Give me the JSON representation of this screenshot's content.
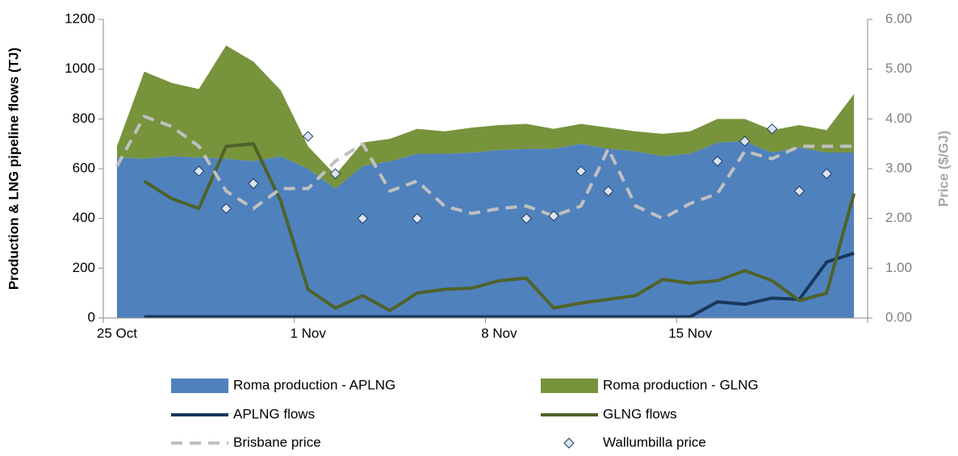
{
  "chart_data": {
    "type": "combo",
    "y_label": "Production & LNG pipeline flows (TJ)",
    "y2_label": "Price ($/GJ)",
    "categories": [
      "25 Oct",
      null,
      null,
      null,
      null,
      null,
      null,
      "1 Nov",
      null,
      null,
      null,
      null,
      null,
      null,
      "8 Nov",
      null,
      null,
      null,
      null,
      null,
      null,
      "15 Nov",
      null,
      null,
      null,
      null,
      null,
      null
    ],
    "ylim": [
      0,
      1200
    ],
    "yticks": [
      0,
      200,
      400,
      600,
      800,
      1000,
      1200
    ],
    "y2lim": [
      0,
      6
    ],
    "y2ticks": [
      {
        "value": 0,
        "label": "0.00"
      },
      {
        "value": 1,
        "label": "1.00"
      },
      {
        "value": 2,
        "label": "2.00"
      },
      {
        "value": 3,
        "label": "3.00"
      },
      {
        "value": 4,
        "label": "4.00"
      },
      {
        "value": 5,
        "label": "5.00"
      },
      {
        "value": 6,
        "label": "6.00"
      }
    ],
    "legend": "bottom",
    "series": [
      {
        "name": "Roma production - APLNG",
        "type": "area",
        "color": "#4f81bd",
        "values": [
          645,
          640,
          650,
          645,
          640,
          630,
          650,
          600,
          520,
          610,
          630,
          660,
          660,
          665,
          675,
          680,
          680,
          700,
          680,
          670,
          650,
          660,
          705,
          710,
          665,
          685,
          665,
          665
        ]
      },
      {
        "name": "Roma production - GLNG",
        "type": "area",
        "color": "#77933c",
        "values": [
          45,
          350,
          295,
          275,
          455,
          400,
          265,
          90,
          55,
          95,
          90,
          100,
          90,
          100,
          100,
          100,
          80,
          80,
          85,
          80,
          90,
          90,
          95,
          90,
          90,
          90,
          90,
          235
        ]
      },
      {
        "name": "APLNG flows",
        "type": "line",
        "color": "#17375e",
        "values": [
          null,
          5,
          5,
          5,
          5,
          5,
          5,
          5,
          5,
          5,
          5,
          5,
          5,
          5,
          5,
          5,
          5,
          5,
          5,
          5,
          5,
          5,
          65,
          55,
          80,
          75,
          225,
          260
        ]
      },
      {
        "name": "GLNG flows",
        "type": "line",
        "color": "#4f6228",
        "values": [
          null,
          550,
          480,
          440,
          690,
          700,
          470,
          115,
          40,
          90,
          30,
          100,
          115,
          120,
          150,
          160,
          40,
          60,
          75,
          90,
          155,
          140,
          150,
          190,
          150,
          70,
          100,
          500
        ]
      },
      {
        "name": "Brisbane price",
        "type": "dashed",
        "axis": "y2",
        "color": "#c0c0c0",
        "values": [
          3.05,
          4.05,
          3.85,
          3.45,
          2.55,
          2.2,
          2.6,
          2.6,
          3.15,
          3.5,
          2.55,
          2.75,
          2.25,
          2.1,
          2.2,
          2.25,
          2.05,
          2.25,
          3.4,
          2.25,
          2.0,
          2.3,
          2.5,
          3.35,
          3.2,
          3.45,
          3.45,
          3.45
        ]
      },
      {
        "name": "Wallumbilla price",
        "type": "scatter",
        "axis": "y2",
        "color": "#dbe5f1",
        "values": [
          null,
          null,
          null,
          2.95,
          2.2,
          2.7,
          null,
          3.65,
          2.9,
          2.0,
          null,
          2.0,
          null,
          null,
          null,
          2.0,
          2.05,
          2.95,
          2.55,
          null,
          null,
          null,
          3.15,
          3.55,
          3.8,
          2.55,
          2.9,
          null
        ]
      }
    ]
  }
}
